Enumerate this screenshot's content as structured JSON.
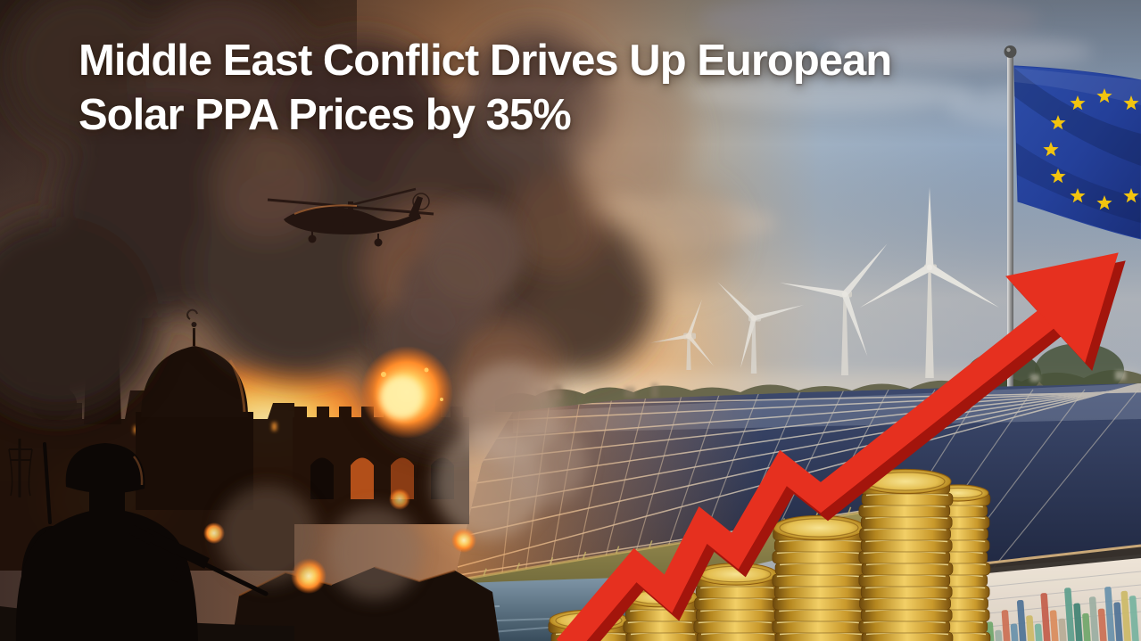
{
  "headline": {
    "line1": "Middle East Conflict Drives Up European",
    "line2": "Solar PPA Prices by 35%"
  },
  "colors": {
    "headline_text": "#ffffff",
    "arrow_red": "#e6301f",
    "arrow_shadow_red": "#a3150c",
    "eu_flag_blue": "#24409a",
    "eu_star_yellow": "#f2c40f",
    "coin_gold": "#f2cf66",
    "solar_panel_navy": "#2a3352",
    "fire_orange": "#ff8c2a",
    "sky_blue_right": "#90a6c0",
    "smoke_brown_left": "#42302a"
  }
}
